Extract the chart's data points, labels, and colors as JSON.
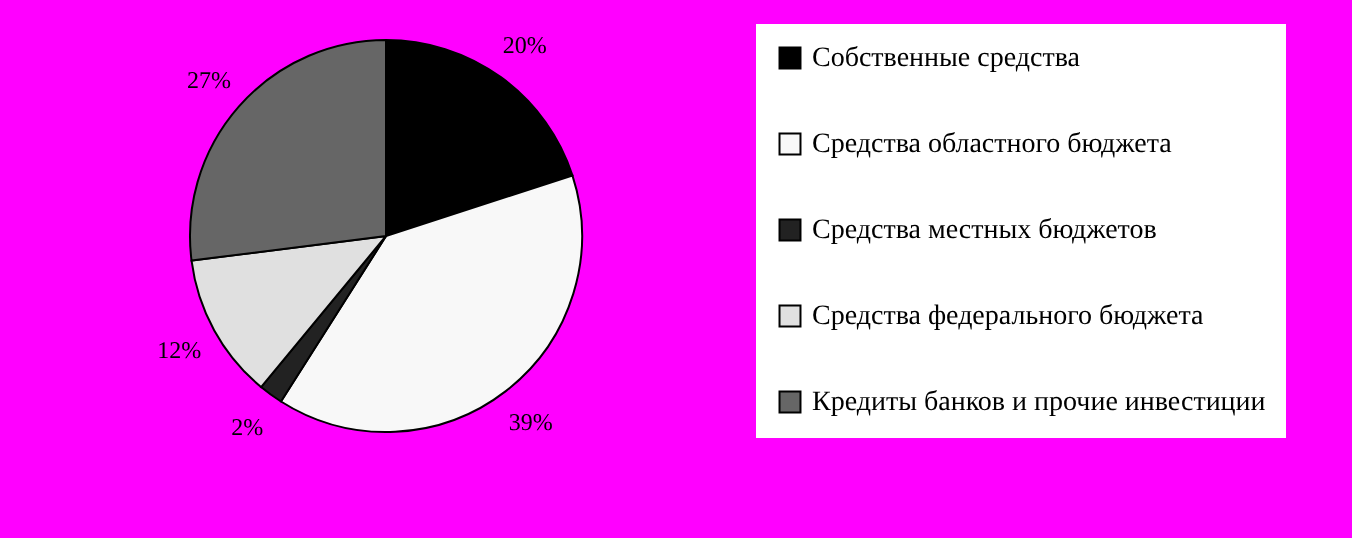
{
  "chart_data": {
    "type": "pie",
    "categories": [
      "Собственные средства",
      "Средства областного бюджета",
      "Средства местных бюджетов",
      "Средства федерального бюджета",
      "Кредиты банков и прочие инвестиции"
    ],
    "values": [
      20,
      39,
      2,
      12,
      27
    ],
    "colors": [
      "#000000",
      "#f8f8f8",
      "#222222",
      "#e0e0e0",
      "#666666"
    ],
    "value_labels": [
      "20%",
      "39%",
      "2%",
      "12%",
      "27%"
    ],
    "legend": "right"
  }
}
